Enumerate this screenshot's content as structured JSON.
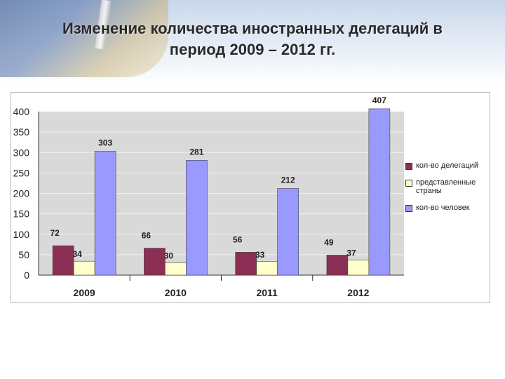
{
  "slide": {
    "title_line1": "Изменение количества иностранных делегаций в",
    "title_line2": "период 2009 – 2012 гг."
  },
  "chart_data": {
    "type": "bar",
    "categories": [
      "2009",
      "2010",
      "2011",
      "2012"
    ],
    "series": [
      {
        "name": "кол-во делегаций",
        "values": [
          72,
          66,
          56,
          49
        ],
        "color": "#8b2f54"
      },
      {
        "name": "представленные страны",
        "values": [
          34,
          30,
          33,
          37
        ],
        "color": "#ffffcc"
      },
      {
        "name": "кол-во человек",
        "values": [
          303,
          281,
          212,
          407
        ],
        "color": "#9999ff"
      }
    ],
    "ylim": [
      0,
      400
    ],
    "yticks": [
      0,
      50,
      100,
      150,
      200,
      250,
      300,
      350,
      400
    ],
    "grid": true,
    "legend_position": "right"
  }
}
